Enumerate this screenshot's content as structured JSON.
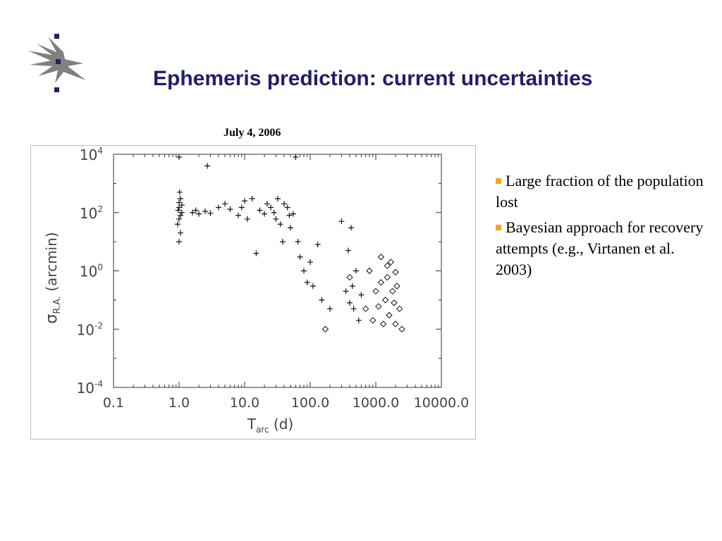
{
  "slide": {
    "title": "Ephemeris prediction: current uncertainties",
    "date": "July 4, 2006",
    "bullets": [
      "Large fraction of the population lost",
      "Bayesian approach for recovery attempts (e.g., Virtanen et al. 2003)"
    ],
    "colors": {
      "title": "#1f1f6b",
      "bullet_marker": "#f5a623",
      "logo": "#808080",
      "logo_dots": "#1f1f6b"
    }
  },
  "chart_data": {
    "type": "scatter",
    "x_scale": "log",
    "y_scale": "log",
    "xlim": [
      0.1,
      10000
    ],
    "ylim": [
      0.0001,
      10000
    ],
    "x_ticks": [
      "0.1",
      "1.0",
      "10.0",
      "100.0",
      "1000.0",
      "10000.0"
    ],
    "y_ticks": [
      {
        "base": "10",
        "exp": "4"
      },
      {
        "base": "10",
        "exp": "2"
      },
      {
        "base": "10",
        "exp": "0"
      },
      {
        "base": "10",
        "exp": "-2"
      },
      {
        "base": "10",
        "exp": "-4"
      }
    ],
    "xlabel": {
      "main": "T",
      "sub": "arc",
      "rest": " (d)"
    },
    "ylabel": {
      "main": "σ",
      "sub": "R.A.",
      "rest": " (arcmin)"
    },
    "grid": false,
    "markers": {
      "plus": "+",
      "diamond": "◇"
    },
    "series": [
      {
        "marker": "plus",
        "points": [
          [
            1.0,
            60
          ],
          [
            1.0,
            150
          ],
          [
            1.05,
            300
          ],
          [
            0.95,
            40
          ],
          [
            1.1,
            100
          ],
          [
            1.0,
            220
          ],
          [
            1.05,
            80
          ],
          [
            0.97,
            120
          ],
          [
            1.02,
            500
          ],
          [
            1.05,
            20
          ],
          [
            1.1,
            180
          ],
          [
            1.0,
            10
          ],
          [
            1.0,
            8000
          ],
          [
            1.6,
            100
          ],
          [
            1.8,
            120
          ],
          [
            2.0,
            90
          ],
          [
            2.5,
            110
          ],
          [
            2.7,
            4000
          ],
          [
            3.0,
            95
          ],
          [
            4.0,
            150
          ],
          [
            5.0,
            200
          ],
          [
            6.0,
            130
          ],
          [
            8.0,
            80
          ],
          [
            9.0,
            150
          ],
          [
            10.0,
            250
          ],
          [
            11.0,
            60
          ],
          [
            13.0,
            300
          ],
          [
            15.0,
            4
          ],
          [
            17.0,
            120
          ],
          [
            20.0,
            90
          ],
          [
            22.0,
            200
          ],
          [
            25.0,
            150
          ],
          [
            28.0,
            100
          ],
          [
            30.0,
            60
          ],
          [
            32.0,
            300
          ],
          [
            35.0,
            40
          ],
          [
            38.0,
            10
          ],
          [
            40.0,
            200
          ],
          [
            45.0,
            150
          ],
          [
            48.0,
            80
          ],
          [
            50.0,
            30
          ],
          [
            55.0,
            90
          ],
          [
            60.0,
            8000
          ],
          [
            65.0,
            10
          ],
          [
            70.0,
            3
          ],
          [
            80.0,
            1
          ],
          [
            90.0,
            0.4
          ],
          [
            100.0,
            2
          ],
          [
            110.0,
            0.3
          ],
          [
            130.0,
            8
          ],
          [
            150.0,
            0.1
          ],
          [
            200.0,
            0.05
          ],
          [
            300.0,
            50
          ],
          [
            350.0,
            0.2
          ],
          [
            380.0,
            5
          ],
          [
            400.0,
            0.08
          ],
          [
            420.0,
            30
          ],
          [
            440.0,
            0.3
          ],
          [
            460.0,
            0.05
          ],
          [
            500.0,
            1
          ],
          [
            550.0,
            0.02
          ],
          [
            600.0,
            0.15
          ]
        ]
      },
      {
        "marker": "diamond",
        "points": [
          [
            170,
            0.01
          ],
          [
            400,
            0.6
          ],
          [
            700,
            0.05
          ],
          [
            800,
            1
          ],
          [
            900,
            0.02
          ],
          [
            1000,
            0.2
          ],
          [
            1100,
            0.06
          ],
          [
            1200,
            0.4
          ],
          [
            1300,
            0.015
          ],
          [
            1400,
            0.1
          ],
          [
            1500,
            0.6
          ],
          [
            1600,
            0.03
          ],
          [
            1700,
            2
          ],
          [
            1800,
            0.2
          ],
          [
            1900,
            0.08
          ],
          [
            2000,
            0.015
          ],
          [
            2100,
            0.3
          ],
          [
            2300,
            0.05
          ],
          [
            2500,
            0.01
          ],
          [
            1200,
            3
          ],
          [
            1500,
            1.5
          ],
          [
            2000,
            0.9
          ]
        ]
      }
    ]
  }
}
